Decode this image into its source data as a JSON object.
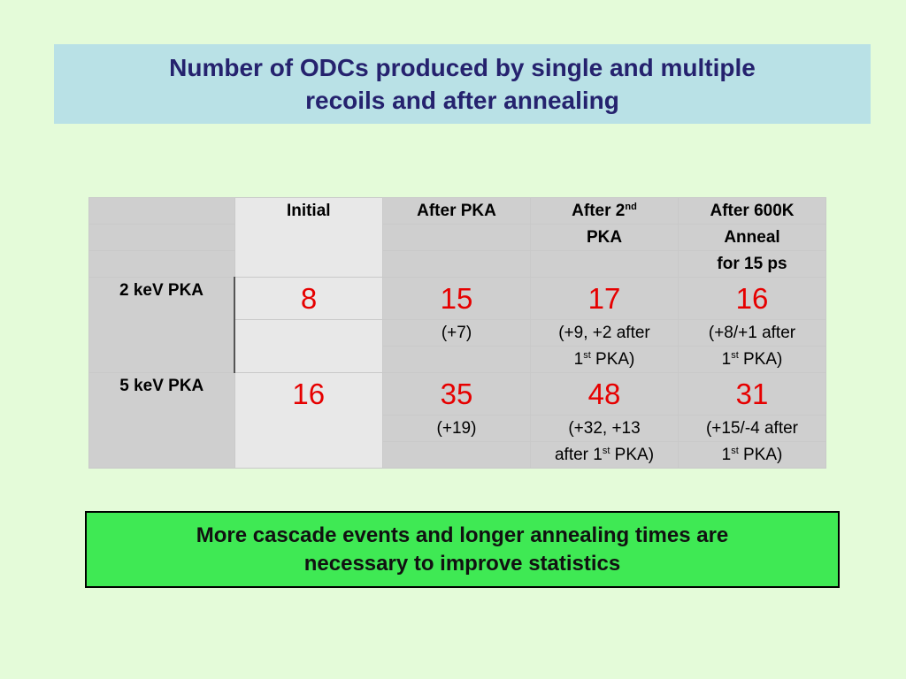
{
  "title": "Number of ODCs produced by single and multiple\nrecoils and after annealing",
  "table": {
    "headers": {
      "initial": "Initial",
      "after_pka": "After PKA",
      "after_2nd_pre": "After 2",
      "after_2nd_sup": "nd",
      "after_2nd_post": "PKA",
      "anneal_1": "After 600K",
      "anneal_2": "Anneal",
      "anneal_3": "for 15 ps"
    },
    "rows": [
      {
        "label": "2 keV PKA",
        "initial": "8",
        "after_pka": "15",
        "after_pka_note": "(+7)",
        "after_2nd": "17",
        "after_2nd_note_1": "(+9, +2 after",
        "after_2nd_note_2_pre": "1",
        "after_2nd_note_2_sup": "st",
        "after_2nd_note_2_post": " PKA)",
        "anneal": "16",
        "anneal_note_1": "(+8/+1 after",
        "anneal_note_2_pre": "1",
        "anneal_note_2_sup": "st",
        "anneal_note_2_post": " PKA)"
      },
      {
        "label": "5 keV PKA",
        "initial": "16",
        "after_pka": "35",
        "after_pka_note": "(+19)",
        "after_2nd": "48",
        "after_2nd_note_1": "(+32, +13",
        "after_2nd_note_2_pre": "after 1",
        "after_2nd_note_2_sup": "st",
        "after_2nd_note_2_post": " PKA)",
        "anneal": "31",
        "anneal_note_1": "(+15/-4 after",
        "anneal_note_2_pre": "1",
        "anneal_note_2_sup": "st",
        "anneal_note_2_post": " PKA)"
      }
    ]
  },
  "note": "More cascade events and longer annealing times are\nnecessary to improve statistics",
  "colors": {
    "background": "#e4fbd9",
    "title_box": "#b9e1e6",
    "title_text": "#25226e",
    "row_label": "#1a1ae8",
    "value": "#e60000",
    "note_box": "#3fe954"
  }
}
